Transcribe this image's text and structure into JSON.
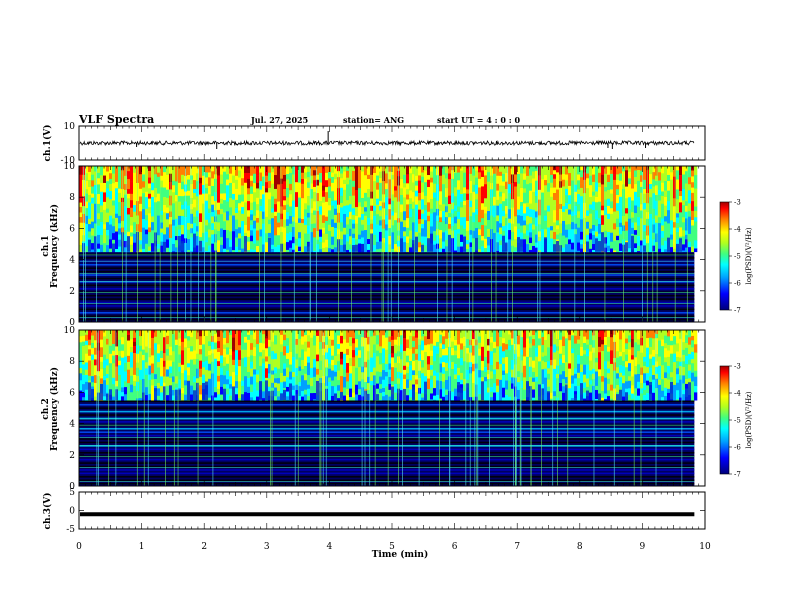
{
  "header": {
    "title": "VLF Spectra",
    "date": "Jul. 27, 2025",
    "station": "station= ANG",
    "start": "start UT =  4 : 0  : 0"
  },
  "colors": {
    "background": "#ffffff",
    "axis": "#000000",
    "colormap": [
      "#00007a",
      "#0000ff",
      "#00a0ff",
      "#00ffff",
      "#40ff80",
      "#b0ff20",
      "#ffff00",
      "#ff8000",
      "#ff0000",
      "#a00000"
    ]
  },
  "chart_data": [
    {
      "id": "ch1-waveform",
      "type": "line",
      "ylabel": "ch.1(V)",
      "ylim": [
        -10,
        10
      ],
      "yticks": [
        "10",
        "-10"
      ],
      "baseline": 0,
      "xlim": [
        0,
        10
      ]
    },
    {
      "id": "ch1-spectrogram",
      "type": "heatmap",
      "ylabel": "ch.1\nFrequency (kHz)",
      "ylabel_lines": [
        "ch.1",
        "Frequency (kHz)"
      ],
      "ylim": [
        0,
        10
      ],
      "yticks": [
        "10",
        "8",
        "6",
        "4",
        "2",
        "0"
      ],
      "xlim": [
        0,
        10
      ],
      "colorbar": {
        "label": "log(PSD)(V²/Hz)",
        "range": [
          -7,
          -3
        ],
        "ticks": [
          "-3",
          "-4",
          "-5",
          "-6",
          "-7"
        ]
      },
      "noise_floor_khz": 4.5
    },
    {
      "id": "ch2-spectrogram",
      "type": "heatmap",
      "ylabel": "ch.2\nFrequency (kHz)",
      "ylabel_lines": [
        "ch.2",
        "Frequency (kHz)"
      ],
      "ylim": [
        0,
        10
      ],
      "yticks": [
        "10",
        "8",
        "6",
        "4",
        "2",
        "0"
      ],
      "xlim": [
        0,
        10
      ],
      "colorbar": {
        "label": "log(PSD)(V²/Hz)",
        "range": [
          -7,
          -3
        ],
        "ticks": [
          "-3",
          "-4",
          "-5",
          "-6",
          "-7"
        ]
      },
      "noise_floor_khz": 5.5
    },
    {
      "id": "ch3-waveform",
      "type": "line",
      "ylabel": "ch.3(V)",
      "ylim": [
        -5,
        5
      ],
      "yticks": [
        "5",
        "0",
        "-5"
      ],
      "baseline": -1,
      "xlim": [
        0,
        10
      ]
    }
  ],
  "xaxis": {
    "label": "Time (min)",
    "range": [
      0,
      10
    ],
    "ticks": [
      "0",
      "1",
      "2",
      "3",
      "4",
      "5",
      "6",
      "7",
      "8",
      "9",
      "10"
    ]
  }
}
